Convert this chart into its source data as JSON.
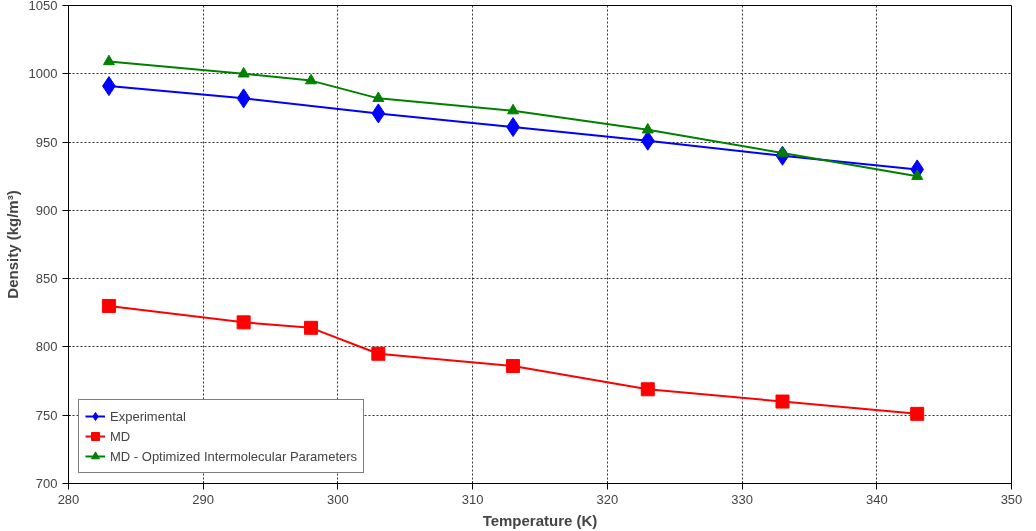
{
  "chart_data": {
    "type": "line",
    "xlabel": "Temperature (K)",
    "ylabel": "Density (kg/m³)",
    "x": [
      283,
      293,
      298,
      303,
      313,
      323,
      333,
      343
    ],
    "series": [
      {
        "name": "Experimental",
        "color": "#0000ff",
        "marker": "diamond",
        "values": [
          991,
          982,
          null,
          971,
          961,
          951,
          940,
          930
        ]
      },
      {
        "name": "MD",
        "color": "#ff0000",
        "marker": "square",
        "values": [
          830,
          818,
          814,
          795,
          786,
          769,
          760,
          751
        ]
      },
      {
        "name": "MD - Optimized Intermolecular Parameters",
        "color": "#008000",
        "marker": "triangle",
        "values": [
          1009,
          1000,
          995,
          982,
          973,
          959,
          942,
          925
        ]
      }
    ],
    "xlim": [
      280,
      350
    ],
    "xticks": [
      280,
      290,
      300,
      310,
      320,
      330,
      340,
      350
    ],
    "ylim": [
      700,
      1050
    ],
    "yticks": [
      700,
      750,
      800,
      850,
      900,
      950,
      1000,
      1050
    ],
    "grid": true,
    "legend": "bottom left",
    "line_style": "solid"
  }
}
